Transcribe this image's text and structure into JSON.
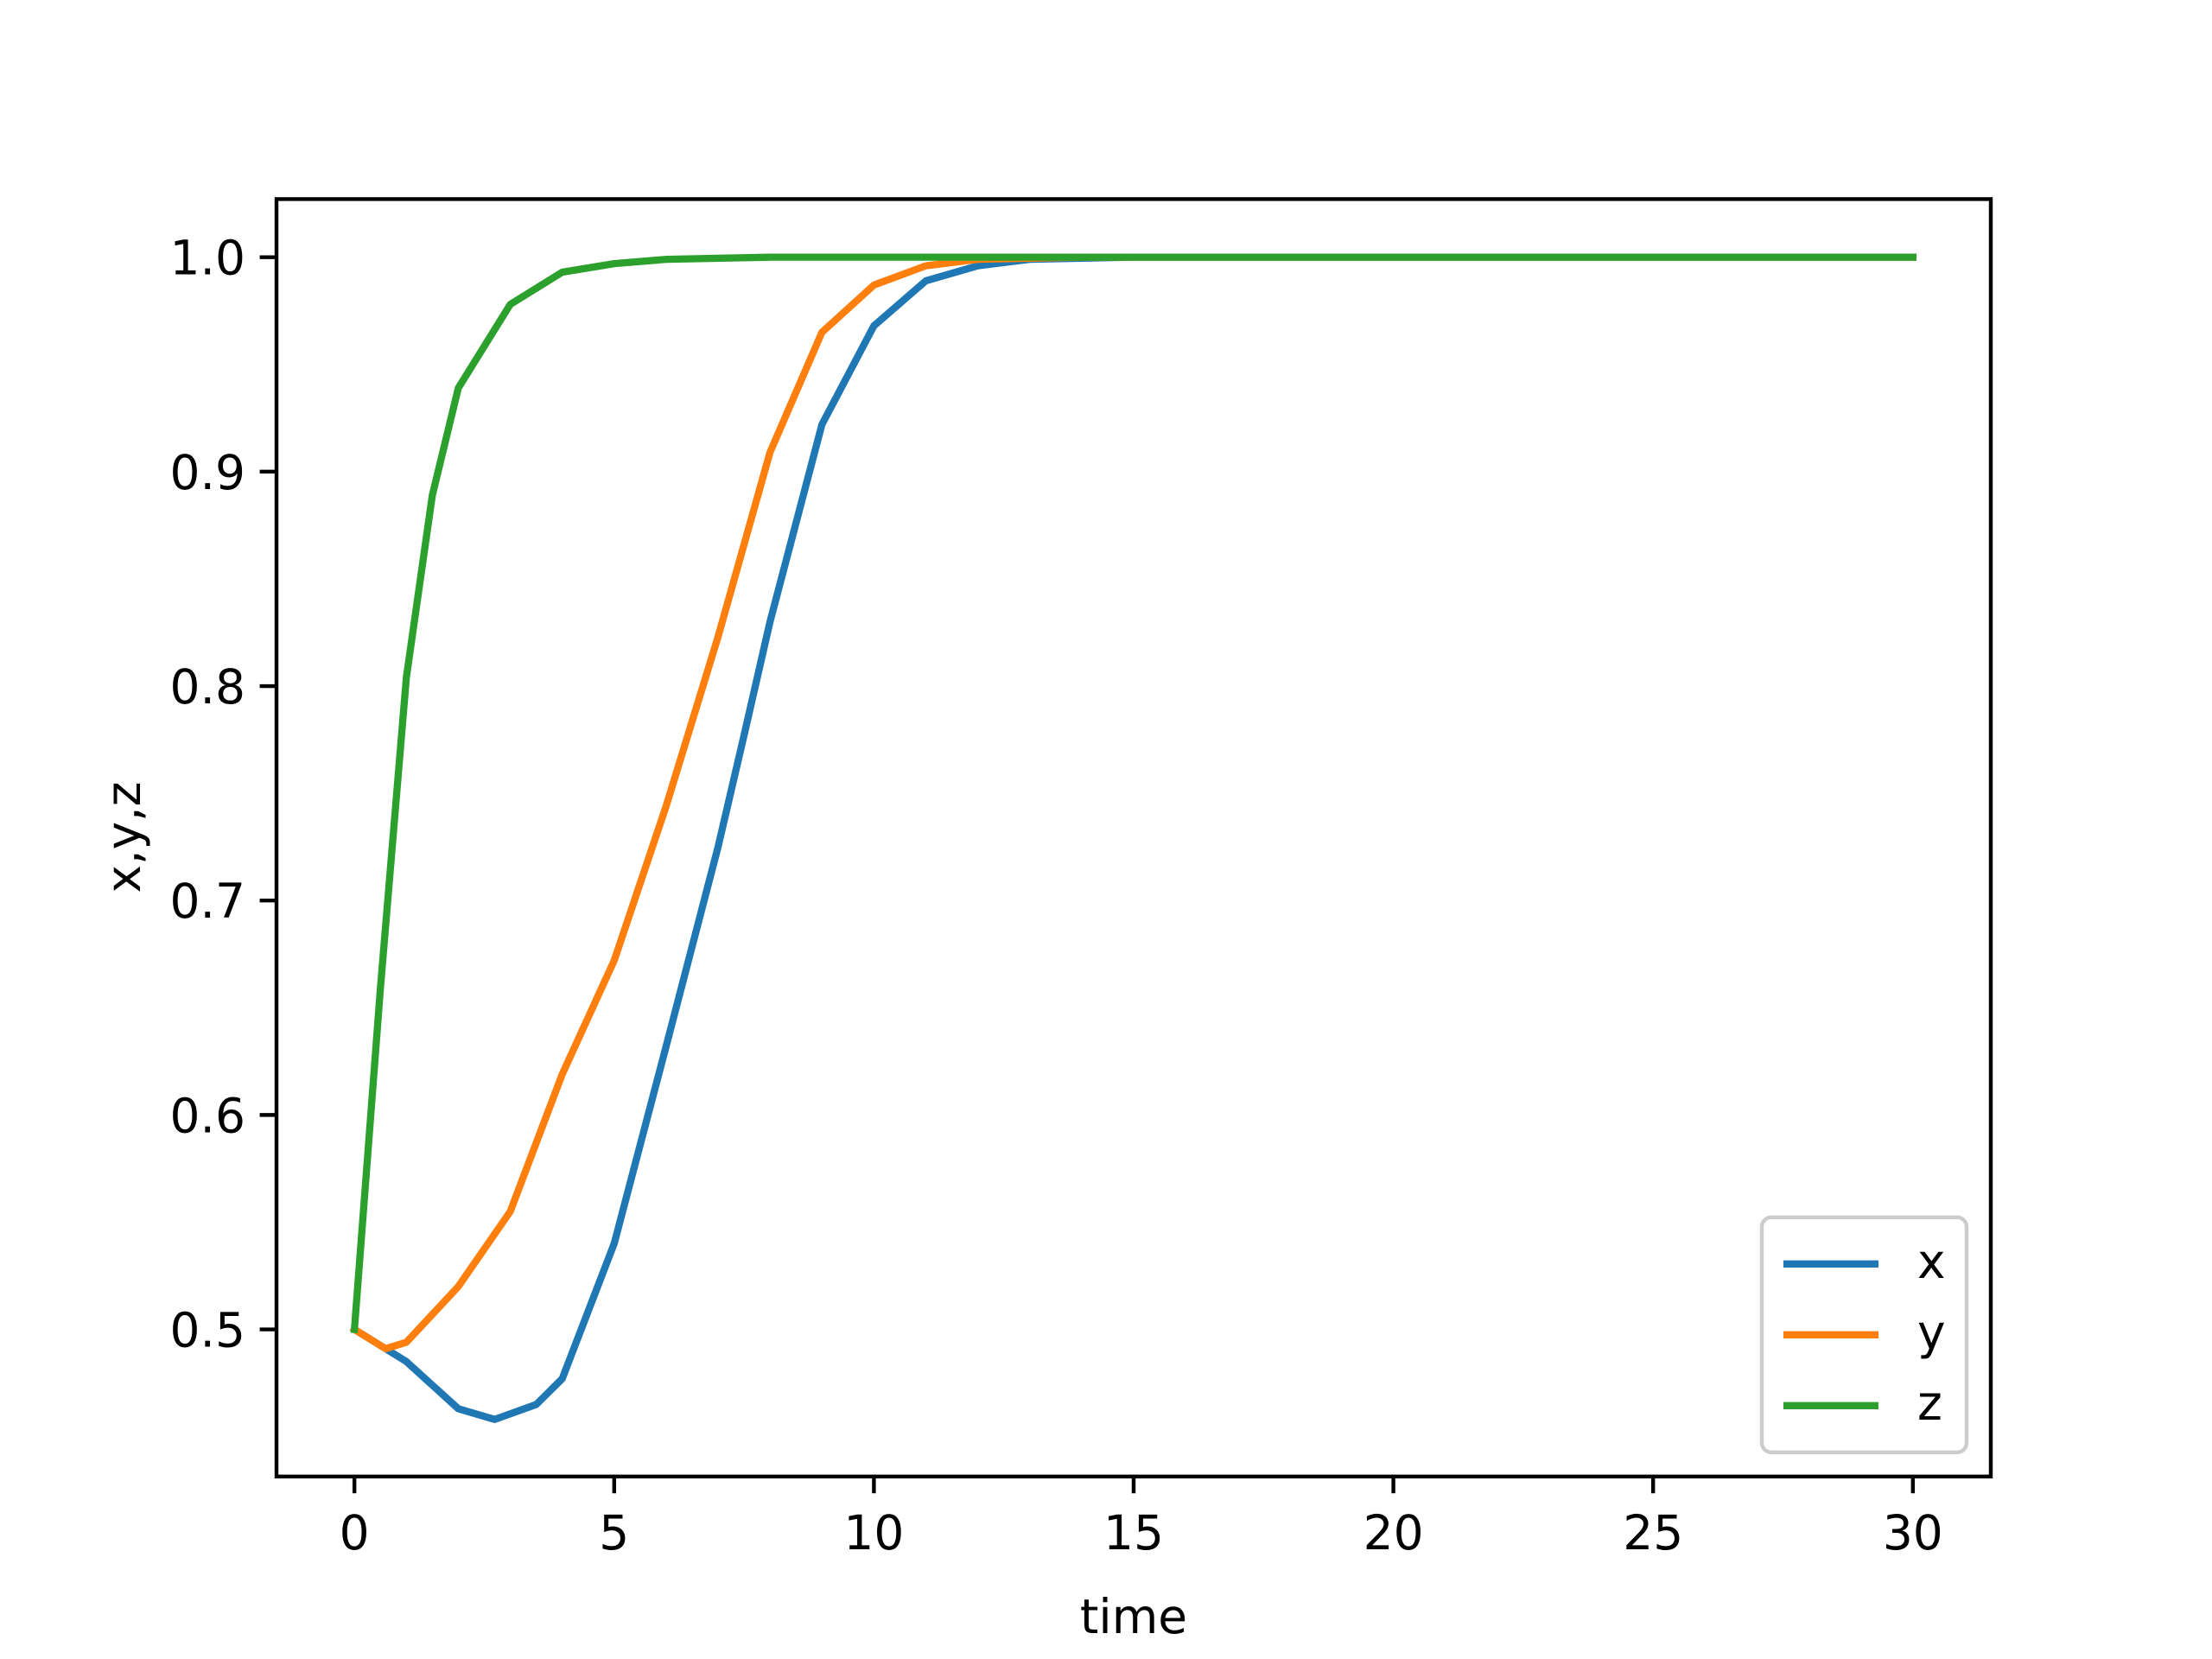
{
  "chart_data": {
    "type": "line",
    "x_label": "time",
    "y_label": "x,y,z",
    "xlim": [
      -1.5,
      31.5
    ],
    "ylim": [
      0.4314,
      1.0271
    ],
    "xticks": [
      0,
      5,
      10,
      15,
      20,
      25,
      30
    ],
    "yticks": [
      0.5,
      0.6,
      0.7,
      0.8,
      0.9,
      {
        "value": 1.0,
        "label": "1.0"
      }
    ],
    "legend": "lower right",
    "series": [
      {
        "name": "x",
        "color": "#1f77b4",
        "x": [
          0,
          1,
          2,
          2.7,
          3.5,
          4,
          5,
          6,
          7,
          7.5,
          8,
          9,
          10,
          11,
          12,
          13,
          15,
          20,
          25,
          30
        ],
        "values": [
          0.5,
          0.485,
          0.463,
          0.458,
          0.465,
          0.477,
          0.54,
          0.632,
          0.725,
          0.777,
          0.83,
          0.922,
          0.968,
          0.989,
          0.996,
          0.999,
          1,
          1,
          1,
          1
        ]
      },
      {
        "name": "y",
        "color": "#ff7f0e",
        "x": [
          0,
          0.6,
          1,
          2,
          3,
          4,
          5,
          6,
          7,
          8,
          9,
          10,
          11,
          12,
          14,
          20,
          25,
          30
        ],
        "values": [
          0.5,
          0.491,
          0.494,
          0.52,
          0.555,
          0.619,
          0.672,
          0.744,
          0.823,
          0.909,
          0.965,
          0.987,
          0.996,
          0.999,
          1,
          1,
          1,
          1
        ]
      },
      {
        "name": "z",
        "color": "#2ca02c",
        "x": [
          0,
          0.5,
          1,
          1.5,
          2,
          3,
          4,
          5,
          6,
          8,
          15,
          20,
          25,
          30
        ],
        "values": [
          0.5,
          0.659,
          0.804,
          0.889,
          0.939,
          0.978,
          0.993,
          0.997,
          0.999,
          1,
          1,
          1,
          1,
          1
        ]
      }
    ]
  }
}
